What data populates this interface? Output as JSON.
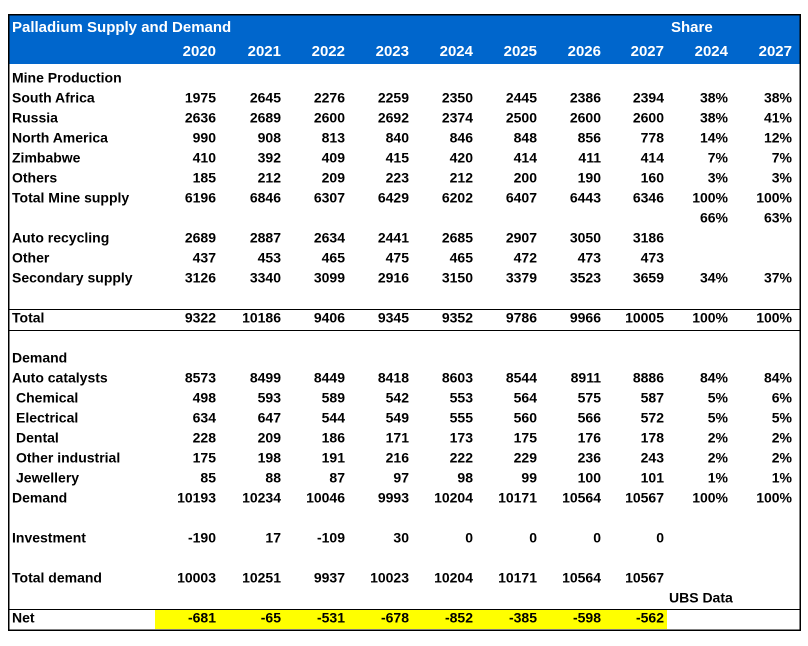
{
  "header": {
    "title": "Palladium Supply and Demand",
    "share_label": "Share",
    "years": [
      2020,
      2021,
      2022,
      2023,
      2024,
      2025,
      2026,
      2027,
      2024,
      2027
    ]
  },
  "table": {
    "rows": [
      {
        "label": "Mine Production",
        "cells": [
          null,
          null,
          null,
          null,
          null,
          null,
          null,
          null,
          null,
          null
        ]
      },
      {
        "label": "South Africa",
        "cells": [
          1975,
          2645,
          2276,
          2259,
          2350,
          2445,
          2386,
          2394,
          "38%",
          "38%"
        ]
      },
      {
        "label": "Russia",
        "cells": [
          2636,
          2689,
          2600,
          2692,
          2374,
          2500,
          2600,
          2600,
          "38%",
          "41%"
        ]
      },
      {
        "label": "North America",
        "cells": [
          990,
          908,
          813,
          840,
          846,
          848,
          856,
          778,
          "14%",
          "12%"
        ]
      },
      {
        "label": "Zimbabwe",
        "cells": [
          410,
          392,
          409,
          415,
          420,
          414,
          411,
          414,
          "7%",
          "7%"
        ]
      },
      {
        "label": "Others",
        "cells": [
          185,
          212,
          209,
          223,
          212,
          200,
          190,
          160,
          "3%",
          "3%"
        ]
      },
      {
        "label": "Total Mine supply",
        "cells": [
          6196,
          6846,
          6307,
          6429,
          6202,
          6407,
          6443,
          6346,
          "100%",
          "100%"
        ]
      },
      {
        "label": null,
        "cells": [
          null,
          null,
          null,
          null,
          null,
          null,
          null,
          null,
          "66%",
          "63%"
        ]
      },
      {
        "label": "Auto recycling",
        "cells": [
          2689,
          2887,
          2634,
          2441,
          2685,
          2907,
          3050,
          3186,
          null,
          null
        ]
      },
      {
        "label": "Other",
        "cells": [
          437,
          453,
          465,
          475,
          465,
          472,
          473,
          473,
          null,
          null
        ]
      },
      {
        "label": "Secondary supply",
        "cells": [
          3126,
          3340,
          3099,
          2916,
          3150,
          3379,
          3523,
          3659,
          "34%",
          "37%"
        ]
      },
      {
        "label": "Total",
        "cells": [
          9322,
          10186,
          9406,
          9345,
          9352,
          9786,
          9966,
          10005,
          "100%",
          "100%"
        ]
      },
      {
        "label": "Demand",
        "cells": [
          null,
          null,
          null,
          null,
          null,
          null,
          null,
          null,
          null,
          null
        ]
      },
      {
        "label": "Auto catalysts",
        "cells": [
          8573,
          8499,
          8449,
          8418,
          8603,
          8544,
          8911,
          8886,
          "84%",
          "84%"
        ]
      },
      {
        "label": "Chemical",
        "cells": [
          498,
          593,
          589,
          542,
          553,
          564,
          575,
          587,
          "5%",
          "6%"
        ]
      },
      {
        "label": "Electrical",
        "cells": [
          634,
          647,
          544,
          549,
          555,
          560,
          566,
          572,
          "5%",
          "5%"
        ]
      },
      {
        "label": "Dental",
        "cells": [
          228,
          209,
          186,
          171,
          173,
          175,
          176,
          178,
          "2%",
          "2%"
        ]
      },
      {
        "label": "Other industrial",
        "cells": [
          175,
          198,
          191,
          216,
          222,
          229,
          236,
          243,
          "2%",
          "2%"
        ]
      },
      {
        "label": "Jewellery",
        "cells": [
          85,
          88,
          87,
          97,
          98,
          99,
          100,
          101,
          "1%",
          "1%"
        ]
      },
      {
        "label": "Demand",
        "cells": [
          10193,
          10234,
          10046,
          9993,
          10204,
          10171,
          10564,
          10567,
          "100%",
          "100%"
        ]
      },
      {
        "label": "Investment",
        "cells": [
          -190,
          17,
          -109,
          30,
          0,
          0,
          0,
          0,
          null,
          null
        ]
      },
      {
        "label": "Total demand",
        "cells": [
          10003,
          10251,
          9937,
          10023,
          10204,
          10171,
          10564,
          10567,
          null,
          null
        ]
      },
      {
        "label": "Net",
        "cells": [
          -681,
          -65,
          -531,
          -678,
          -852,
          -385,
          -598,
          -562,
          null,
          null
        ]
      }
    ],
    "note": "UBS Data"
  }
}
